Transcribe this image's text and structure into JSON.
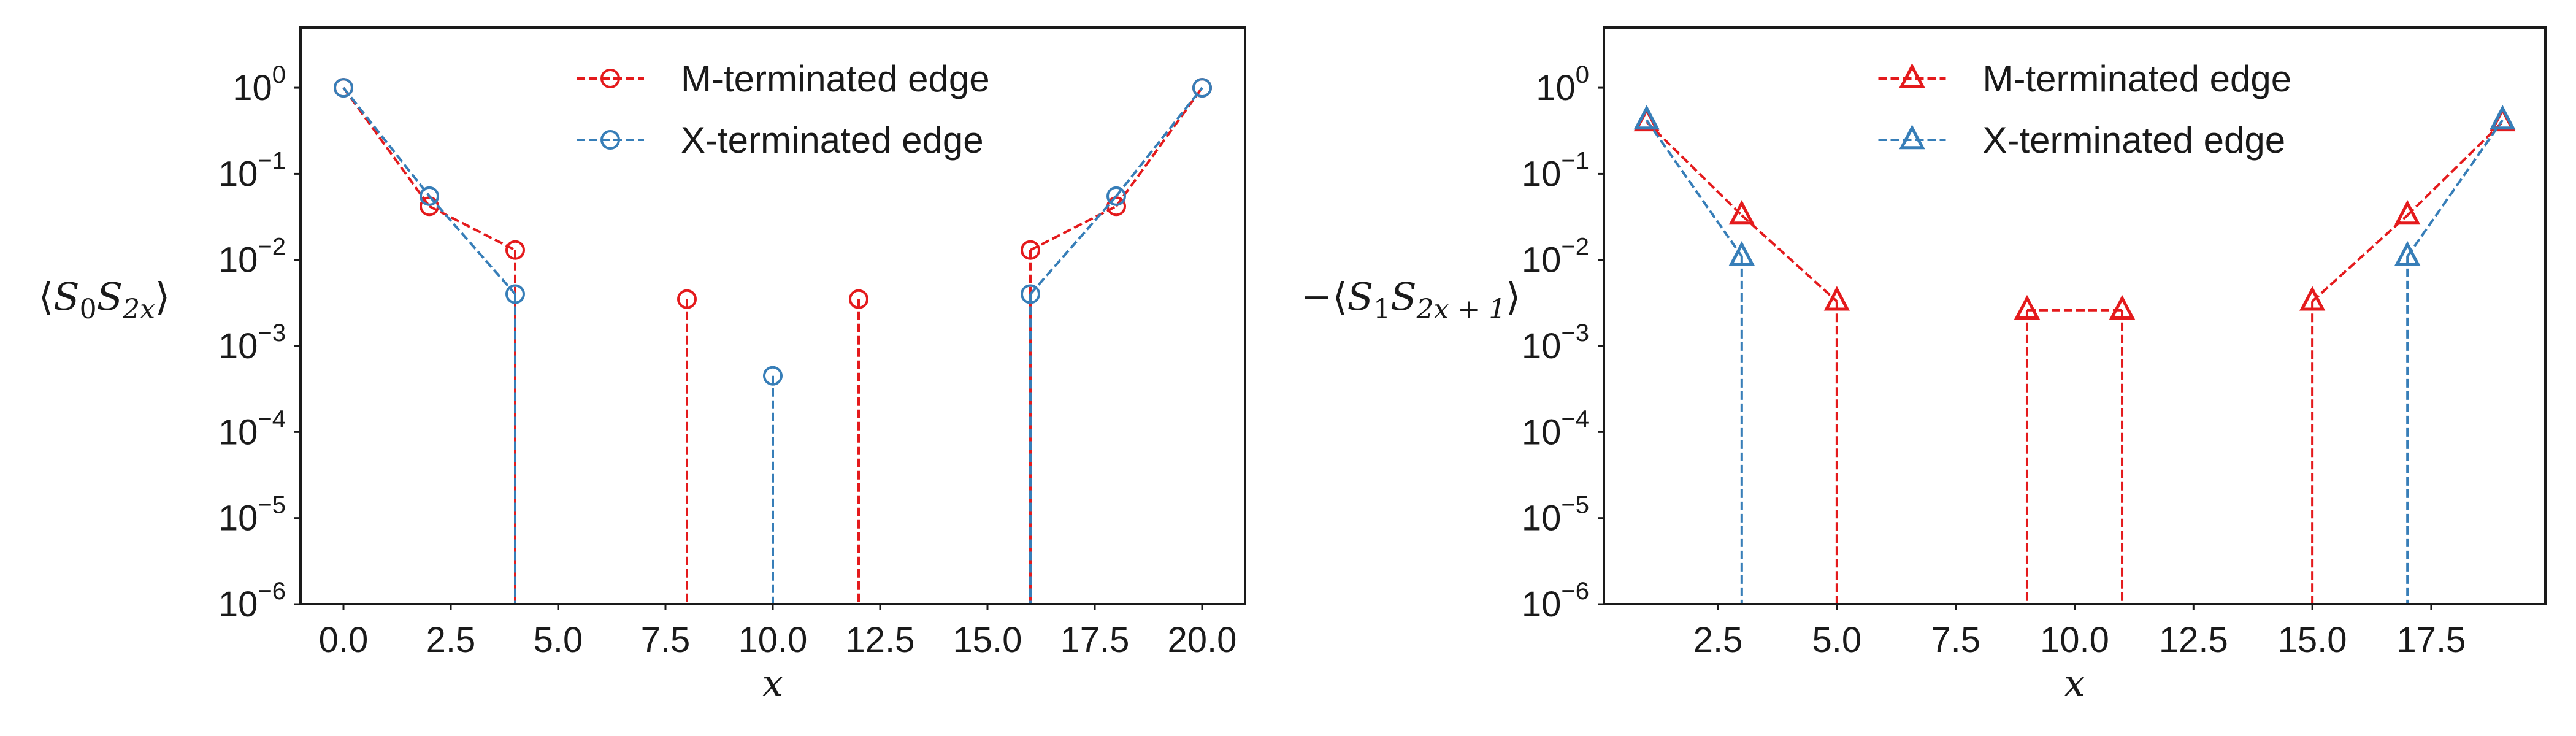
{
  "colors": {
    "m_edge": "#e41a1c",
    "x_edge": "#377eb8",
    "axis": "#1a1a1a"
  },
  "chart_data": [
    {
      "type": "line",
      "marker": "circle",
      "yscale": "log",
      "xlabel": "x",
      "ylabel": "⟨S0S2x⟩",
      "ylabel_parts": {
        "pre": "⟨",
        "s1": "S",
        "sub1": "0",
        "s2": "S",
        "sub2": "2x",
        "post": "⟩"
      },
      "xlim": [
        -1,
        21
      ],
      "ylim": [
        1e-06,
        5
      ],
      "xticks": [
        0,
        2.5,
        5,
        7.5,
        10,
        12.5,
        15,
        17.5,
        20
      ],
      "xtick_labels": [
        "0.0",
        "2.5",
        "5.0",
        "7.5",
        "10.0",
        "12.5",
        "15.0",
        "17.5",
        "20.0"
      ],
      "yticks": [
        1,
        0.1,
        0.01,
        0.001,
        0.0001,
        1e-05,
        1e-06
      ],
      "ytick_labels": [
        {
          "base": "10",
          "exp": "0"
        },
        {
          "base": "10",
          "exp": "−1"
        },
        {
          "base": "10",
          "exp": "−2"
        },
        {
          "base": "10",
          "exp": "−3"
        },
        {
          "base": "10",
          "exp": "−4"
        },
        {
          "base": "10",
          "exp": "−5"
        },
        {
          "base": "10",
          "exp": "−6"
        }
      ],
      "legend": "top-center",
      "grid": false,
      "series": [
        {
          "name": "M-terminated edge",
          "color": "#e41a1c",
          "points": [
            [
              0,
              1.0
            ],
            [
              2,
              0.042
            ],
            [
              4,
              0.013
            ],
            [
              16,
              0.013
            ],
            [
              18,
              0.042
            ],
            [
              20,
              1.0
            ]
          ],
          "stems": [
            [
              4,
              0.013
            ],
            [
              8,
              0.0035
            ],
            [
              12,
              0.0035
            ],
            [
              16,
              0.013
            ]
          ]
        },
        {
          "name": "X-terminated edge",
          "color": "#377eb8",
          "points": [
            [
              0,
              1.0
            ],
            [
              2,
              0.055
            ],
            [
              4,
              0.004
            ],
            [
              16,
              0.004
            ],
            [
              18,
              0.055
            ],
            [
              20,
              1.0
            ]
          ],
          "stems": [
            [
              4,
              0.004
            ],
            [
              10,
              0.00045
            ],
            [
              16,
              0.004
            ]
          ]
        }
      ]
    },
    {
      "type": "line",
      "marker": "triangle",
      "yscale": "log",
      "xlabel": "x",
      "ylabel": "−⟨S1S2x+1⟩",
      "ylabel_parts": {
        "pre": "−⟨",
        "s1": "S",
        "sub1": "1",
        "s2": "S",
        "sub2": "2x + 1",
        "post": "⟩"
      },
      "xlim": [
        0.1,
        19.9
      ],
      "ylim": [
        1e-06,
        5
      ],
      "xticks": [
        2.5,
        5,
        7.5,
        10,
        12.5,
        15,
        17.5
      ],
      "xtick_labels": [
        "2.5",
        "5.0",
        "7.5",
        "10.0",
        "12.5",
        "15.0",
        "17.5"
      ],
      "yticks": [
        1,
        0.1,
        0.01,
        0.001,
        0.0001,
        1e-05,
        1e-06
      ],
      "ytick_labels": [
        {
          "base": "10",
          "exp": "0"
        },
        {
          "base": "10",
          "exp": "−1"
        },
        {
          "base": "10",
          "exp": "−2"
        },
        {
          "base": "10",
          "exp": "−3"
        },
        {
          "base": "10",
          "exp": "−4"
        },
        {
          "base": "10",
          "exp": "−5"
        },
        {
          "base": "10",
          "exp": "−6"
        }
      ],
      "legend": "top-center",
      "grid": false,
      "series": [
        {
          "name": "M-terminated edge",
          "color": "#e41a1c",
          "points": [
            [
              1,
              0.4
            ],
            [
              3,
              0.033
            ],
            [
              5,
              0.0033
            ],
            [
              9,
              0.0026
            ],
            [
              11,
              0.0026
            ],
            [
              15,
              0.0033
            ],
            [
              17,
              0.033
            ],
            [
              19,
              0.4
            ]
          ],
          "stems": [
            [
              5,
              0.0033
            ],
            [
              9,
              0.0026
            ],
            [
              11,
              0.0026
            ],
            [
              15,
              0.0033
            ]
          ]
        },
        {
          "name": "X-terminated edge",
          "color": "#377eb8",
          "points": [
            [
              1,
              0.42
            ],
            [
              3,
              0.011
            ],
            [
              17,
              0.011
            ],
            [
              19,
              0.42
            ]
          ],
          "stems": [
            [
              3,
              0.011
            ],
            [
              17,
              0.011
            ]
          ]
        }
      ]
    }
  ]
}
